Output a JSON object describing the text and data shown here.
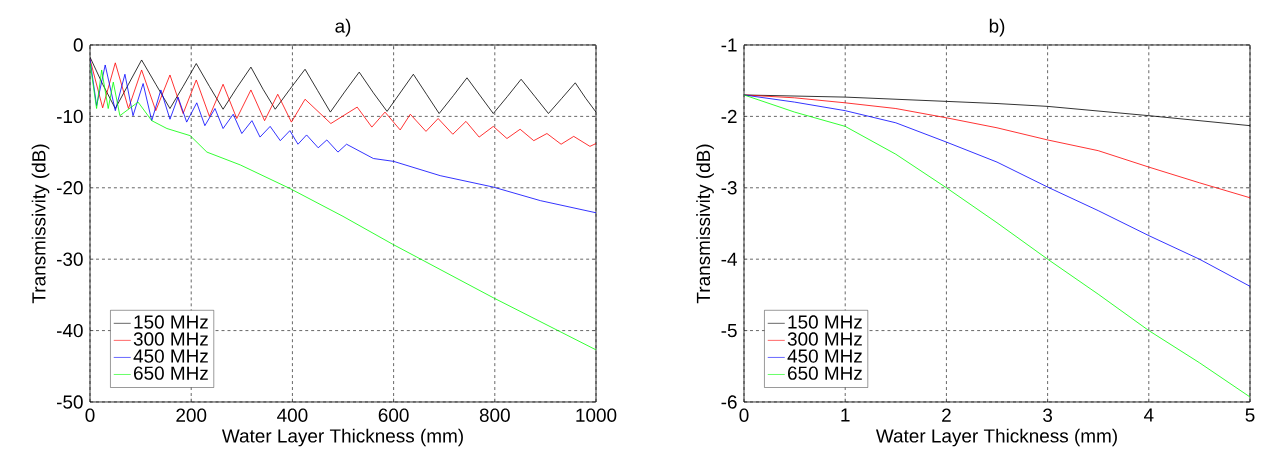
{
  "chart_data": [
    {
      "type": "line",
      "title": "a)",
      "xlabel": "Water Layer Thickness (mm)",
      "ylabel": "Transmissivity (dB)",
      "xlim": [
        0,
        1000
      ],
      "ylim": [
        -50,
        0
      ],
      "xticks": [
        0,
        200,
        400,
        600,
        800,
        1000
      ],
      "yticks": [
        -50,
        -40,
        -30,
        -20,
        -10,
        0
      ],
      "grid": true,
      "legend": "bottom left",
      "marker": "none",
      "line_style": "solid",
      "series": [
        {
          "name": "150 MHz",
          "color": "#000000",
          "x": [
            0,
            25,
            50,
            76,
            102,
            130,
            158,
            184,
            210,
            236,
            263,
            290,
            318,
            342,
            366,
            395,
            425,
            450,
            475,
            503,
            532,
            560,
            587,
            613,
            639,
            665,
            690,
            718,
            745,
            771,
            797,
            825,
            852,
            879,
            906,
            932,
            959,
            980,
            1000
          ],
          "values": [
            -1.7,
            -5.5,
            -8.9,
            -5.5,
            -2.1,
            -5.5,
            -8.9,
            -5.8,
            -2.6,
            -5.8,
            -9.0,
            -6.0,
            -3.1,
            -6.2,
            -9.0,
            -6.2,
            -3.4,
            -6.4,
            -9.4,
            -6.6,
            -3.8,
            -6.7,
            -9.3,
            -6.7,
            -4.1,
            -6.9,
            -9.6,
            -7.1,
            -4.6,
            -7.1,
            -9.6,
            -7.2,
            -4.8,
            -7.2,
            -9.6,
            -7.5,
            -5.3,
            -7.5,
            -9.4
          ]
        },
        {
          "name": "300 MHz",
          "color": "#ff0000",
          "x": [
            0,
            25,
            50,
            76,
            102,
            130,
            158,
            184,
            210,
            236,
            263,
            290,
            318,
            345,
            371,
            398,
            425,
            476,
            528,
            557,
            583,
            613,
            633,
            664,
            688,
            717,
            743,
            769,
            797,
            824,
            850,
            877,
            903,
            931,
            956,
            988,
            1000
          ],
          "values": [
            -2.0,
            -8.8,
            -2.5,
            -8.9,
            -3.5,
            -9.2,
            -4.2,
            -9.6,
            -4.9,
            -10.0,
            -5.5,
            -10.3,
            -6.3,
            -10.6,
            -6.9,
            -10.8,
            -7.6,
            -11.0,
            -8.7,
            -11.5,
            -9.4,
            -11.9,
            -9.7,
            -12.1,
            -10.3,
            -12.5,
            -10.7,
            -12.9,
            -11.4,
            -13.1,
            -11.8,
            -13.4,
            -12.4,
            -13.9,
            -12.8,
            -14.2,
            -13.8
          ]
        },
        {
          "name": "450 MHz",
          "color": "#0000ff",
          "x": [
            0,
            13,
            30,
            50,
            69,
            85,
            105,
            122,
            140,
            158,
            174,
            191,
            211,
            227,
            247,
            263,
            283,
            300,
            320,
            336,
            356,
            376,
            395,
            411,
            428,
            451,
            468,
            490,
            507,
            560,
            600,
            692,
            797,
            890,
            1000
          ],
          "values": [
            -2.0,
            -8.5,
            -2.8,
            -9.2,
            -4.1,
            -9.9,
            -5.4,
            -10.6,
            -6.3,
            -10.4,
            -7.3,
            -10.8,
            -8.1,
            -11.3,
            -8.9,
            -11.7,
            -9.7,
            -12.4,
            -10.6,
            -12.9,
            -11.4,
            -13.4,
            -12.0,
            -13.9,
            -12.6,
            -14.4,
            -13.3,
            -15.0,
            -13.9,
            -15.9,
            -16.3,
            -18.3,
            -19.9,
            -21.8,
            -23.5
          ]
        },
        {
          "name": "650 MHz",
          "color": "#00ff00",
          "x": [
            0,
            13,
            23,
            36,
            46,
            59,
            95,
            122,
            152,
            198,
            231,
            297,
            395,
            500,
            598,
            797,
            1000
          ],
          "values": [
            -2.5,
            -8.9,
            -3.5,
            -8.9,
            -5.2,
            -9.9,
            -8.0,
            -10.6,
            -11.7,
            -12.7,
            -15.0,
            -16.8,
            -20.1,
            -24.0,
            -27.9,
            -35.4,
            -42.7
          ]
        }
      ]
    },
    {
      "type": "line",
      "title": "b)",
      "xlabel": "Water Layer Thickness (mm)",
      "ylabel": "Transmissivity (dB)",
      "xlim": [
        0,
        5
      ],
      "ylim": [
        -6,
        -1
      ],
      "xticks": [
        0,
        1,
        2,
        3,
        4,
        5
      ],
      "yticks": [
        -6,
        -5,
        -4,
        -3,
        -2,
        -1
      ],
      "grid": true,
      "legend": "bottom left",
      "marker": "none",
      "line_style": "solid",
      "series": [
        {
          "name": "150 MHz",
          "color": "#000000",
          "x": [
            0,
            1,
            2,
            2.5,
            3,
            4,
            5
          ],
          "values": [
            -1.7,
            -1.73,
            -1.79,
            -1.82,
            -1.86,
            -1.99,
            -2.13
          ]
        },
        {
          "name": "300 MHz",
          "color": "#ff0000",
          "x": [
            0,
            0.5,
            1,
            1.5,
            2,
            2.5,
            3,
            3.5,
            4,
            4.5,
            5
          ],
          "values": [
            -1.7,
            -1.74,
            -1.81,
            -1.89,
            -2.02,
            -2.16,
            -2.33,
            -2.48,
            -2.71,
            -2.93,
            -3.14
          ]
        },
        {
          "name": "450 MHz",
          "color": "#0000ff",
          "x": [
            0,
            0.5,
            1,
            1.5,
            2,
            2.5,
            3,
            3.5,
            4,
            4.5,
            5
          ],
          "values": [
            -1.7,
            -1.8,
            -1.92,
            -2.09,
            -2.36,
            -2.64,
            -2.99,
            -3.32,
            -3.67,
            -4.0,
            -4.38
          ]
        },
        {
          "name": "650 MHz",
          "color": "#00ff00",
          "x": [
            0,
            0.5,
            1,
            1.5,
            2,
            2.5,
            3,
            3.5,
            4,
            4.5,
            5
          ],
          "values": [
            -1.7,
            -1.94,
            -2.14,
            -2.53,
            -3.0,
            -3.49,
            -4.0,
            -4.49,
            -5.0,
            -5.45,
            -5.93
          ]
        }
      ]
    }
  ]
}
